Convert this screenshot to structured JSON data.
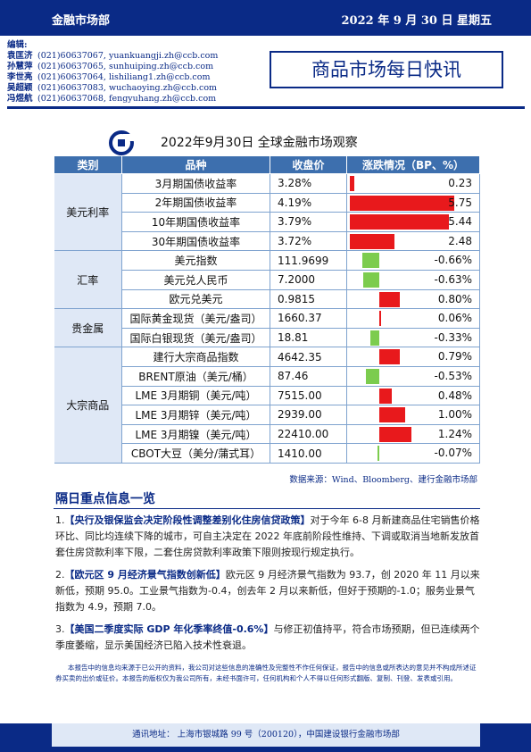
{
  "header": {
    "department": "金融市场部",
    "date": "2022 年 9 月 30 日  星期五"
  },
  "editors": {
    "label": "编辑:",
    "list": [
      {
        "name": "袁匡济",
        "phone": "(021)60637067,",
        "email": "yuankuangji.zh@ccb.com"
      },
      {
        "name": "孙慧萍",
        "phone": "(021)60637065,",
        "email": "sunhuiping.zh@ccb.com"
      },
      {
        "name": "李世亮",
        "phone": "(021)60637064,",
        "email": "lishiliang1.zh@ccb.com"
      },
      {
        "name": "吴超颖",
        "phone": "(021)60637083,",
        "email": "wuchaoying.zh@ccb.com"
      },
      {
        "name": "冯煜航",
        "phone": "(021)60637068,",
        "email": "fengyuhang.zh@ccb.com"
      }
    ]
  },
  "report_title": "商品市场每日快讯",
  "table": {
    "title": "2022年9月30日  全球金融市场观察",
    "headers": [
      "类别",
      "品种",
      "收盘价",
      "涨跌情况（BP、%）"
    ],
    "groups": [
      {
        "category": "美元利率",
        "rows": [
          {
            "item": "3月期国债收益率",
            "close": "3.28%",
            "change": "0.23",
            "value": 0.23,
            "scale": 6.0
          },
          {
            "item": "2年期国债收益率",
            "close": "4.19%",
            "change": "5.75",
            "value": 5.75,
            "scale": 6.0
          },
          {
            "item": "10年期国债收益率",
            "close": "3.79%",
            "change": "5.44",
            "value": 5.44,
            "scale": 6.0
          },
          {
            "item": "30年期国债收益率",
            "close": "3.72%",
            "change": "2.48",
            "value": 2.48,
            "scale": 6.0
          }
        ]
      },
      {
        "category": "汇率",
        "rows": [
          {
            "item": "美元指数",
            "close": "111.9699",
            "change": "-0.66%",
            "value": -0.66,
            "scale": 2.0
          },
          {
            "item": "美元兑人民币",
            "close": "7.2000",
            "change": "-0.63%",
            "value": -0.63,
            "scale": 2.0
          },
          {
            "item": "欧元兑美元",
            "close": "0.9815",
            "change": "0.80%",
            "value": 0.8,
            "scale": 2.0
          }
        ]
      },
      {
        "category": "贵金属",
        "rows": [
          {
            "item": "国际黄金现货（美元/盎司）",
            "close": "1660.37",
            "change": "0.06%",
            "value": 0.06,
            "scale": 2.0
          },
          {
            "item": "国际白银现货（美元/盎司）",
            "close": "18.81",
            "change": "-0.33%",
            "value": -0.33,
            "scale": 2.0
          }
        ]
      },
      {
        "category": "大宗商品",
        "rows": [
          {
            "item": "建行大宗商品指数",
            "close": "4642.35",
            "change": "0.79%",
            "value": 0.79,
            "scale": 2.0
          },
          {
            "item": "BRENT原油（美元/桶）",
            "close": "87.46",
            "change": "-0.53%",
            "value": -0.53,
            "scale": 2.0
          },
          {
            "item": "LME 3月期铜（美元/吨）",
            "close": "7515.00",
            "change": "0.48%",
            "value": 0.48,
            "scale": 2.0
          },
          {
            "item": "LME 3月期锌（美元/吨）",
            "close": "2939.00",
            "change": "1.00%",
            "value": 1.0,
            "scale": 2.0
          },
          {
            "item": "LME 3月期镍（美元/吨）",
            "close": "22410.00",
            "change": "1.24%",
            "value": 1.24,
            "scale": 2.0
          },
          {
            "item": "CBOT大豆（美分/蒲式耳）",
            "close": "1410.00",
            "change": "-0.07%",
            "value": -0.07,
            "scale": 2.0
          }
        ]
      }
    ]
  },
  "source": "数据来源：Wind、Bloomberg、建行金融市场部",
  "section_title": "隔日重点信息一览",
  "news": [
    {
      "num": "1.",
      "headline": "【央行及银保监会决定阶段性调整差别化住房信贷政策】",
      "body": "对于今年 6-8 月新建商品住宅销售价格环比、同比均连续下降的城市，可自主决定在 2022 年底前阶段性维持、下调或取消当地新发放首套住房贷款利率下限，二套住房贷款利率政策下限则按现行规定执行。"
    },
    {
      "num": "2.",
      "headline": "【欧元区 9 月经济景气指数创新低】",
      "body": "欧元区 9 月经济景气指数为 93.7，创 2020 年 11 月以来新低，预期 95.0。工业景气指数为-0.4，创去年 2 月以来新低，但好于预期的-1.0；服务业景气指数为 4.9，预期 7.0。"
    },
    {
      "num": "3.",
      "headline": "【美国二季度实际 GDP 年化季率终值-0.6%】",
      "body": "与修正初值持平，符合市场预期，但已连续两个季度萎缩，显示美国经济已陷入技术性衰退。"
    }
  ],
  "disclaimer": "本报告中的信息均来源于已公开的资料，我公司对这些信息的准确性及完整性不作任何保证，报告中的信息或所表达的意见并不构成所述证券买卖的出价或征价。本报告的版权仅为我公司所有，未经书面许可，任何机构和个人不得以任何形式翻版、复制、刊登、发表或引用。",
  "footer": "通讯地址：  上海市银城路 99 号（200120），中国建设银行金融市场部",
  "colors": {
    "brand": "#0a2a86",
    "table_header": "#3d6fae",
    "up": "#e8191c",
    "down": "#7ccc4e"
  }
}
